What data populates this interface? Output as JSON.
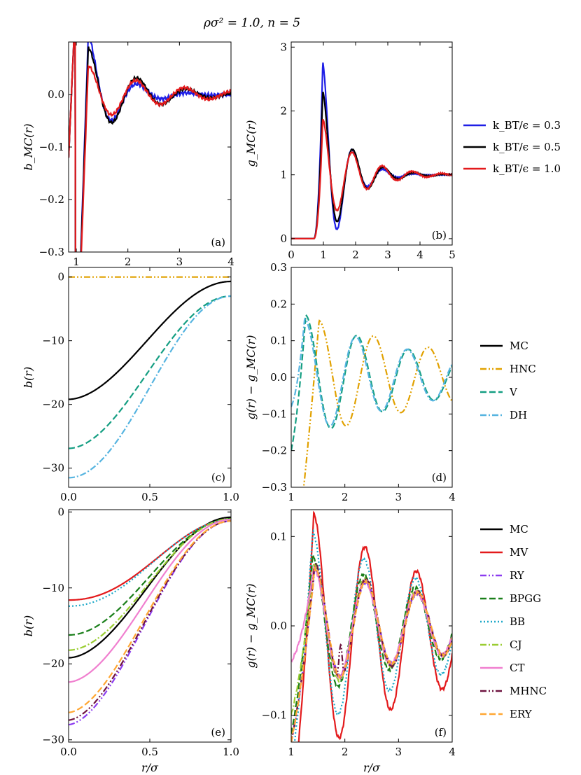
{
  "figure": {
    "suptitle": "ρσ² = 1.0, n = 5"
  },
  "colors": {
    "blue": "#1f1fe6",
    "black": "#000000",
    "red": "#e31a1c",
    "orange": "#e1a100",
    "teal": "#149e82",
    "skyblue": "#56b4e0",
    "purple": "#8c3cf0",
    "green": "#1a7f1a",
    "cyan": "#1ba8c8",
    "lime": "#9acd32",
    "pink": "#f07fcf",
    "maroon": "#6e1440",
    "lightorange": "#ffa733"
  },
  "legends": {
    "temperature": [
      {
        "label": "k_BT/ϵ = 0.3",
        "color": "blue",
        "dash": "solid"
      },
      {
        "label": "k_BT/ϵ = 0.5",
        "color": "black",
        "dash": "solid"
      },
      {
        "label": "k_BT/ϵ = 1.0",
        "color": "red",
        "dash": "solid"
      }
    ],
    "closures1": [
      {
        "label": "MC",
        "color": "black",
        "dash": "solid"
      },
      {
        "label": "HNC",
        "color": "orange",
        "dash": "dashdotdot"
      },
      {
        "label": "V",
        "color": "teal",
        "dash": "dashed"
      },
      {
        "label": "DH",
        "color": "skyblue",
        "dash": "dashdot"
      }
    ],
    "closures2": [
      {
        "label": "MC",
        "color": "black",
        "dash": "solid"
      },
      {
        "label": "MV",
        "color": "red",
        "dash": "solid"
      },
      {
        "label": "RY",
        "color": "purple",
        "dash": "dashdotdot"
      },
      {
        "label": "BPGG",
        "color": "green",
        "dash": "dashed"
      },
      {
        "label": "BB",
        "color": "cyan",
        "dash": "dotted"
      },
      {
        "label": "CJ",
        "color": "lime",
        "dash": "dashdot"
      },
      {
        "label": "CT",
        "color": "pink",
        "dash": "solid"
      },
      {
        "label": "MHNC",
        "color": "maroon",
        "dash": "dashdotdot"
      },
      {
        "label": "ERY",
        "color": "lightorange",
        "dash": "dashed"
      }
    ]
  },
  "chart_data": [
    {
      "id": "a",
      "type": "line",
      "panel_label": "(a)",
      "xlabel": "",
      "ylabel": "b_MC(r)",
      "xlim": [
        0.85,
        4.0
      ],
      "ylim": [
        -0.3,
        0.1
      ],
      "xticks": [
        1,
        2,
        3,
        4
      ],
      "xtick_labels": [
        "1",
        "2",
        "3",
        "4"
      ],
      "yticks": [
        -0.3,
        -0.2,
        -0.1,
        0.0
      ],
      "ytick_labels": [
        "−0.3",
        "−0.2",
        "−0.1",
        "0.0"
      ],
      "series": [
        {
          "name": "k_BT/ϵ = 0.3",
          "color": "blue",
          "dash": "solid",
          "model": {
            "type": "osc",
            "amp": 0.115,
            "period": 0.98,
            "phase": 1.232,
            "decay": 0.55,
            "rise": 1.0,
            "offset": 0,
            "noise": 0.004
          }
        },
        {
          "name": "k_BT/ϵ = 0.5",
          "color": "black",
          "dash": "solid",
          "model": {
            "type": "osc",
            "amp": 0.09,
            "period": 0.96,
            "phase": 1.232,
            "decay": 0.9,
            "rise": 1.0,
            "offset": 0,
            "noise": 0.003
          }
        },
        {
          "name": "k_BT/ϵ = 1.0",
          "color": "red",
          "dash": "solid",
          "model": {
            "type": "osc",
            "amp": 0.055,
            "period": 0.94,
            "phase": 1.232,
            "decay": 1.3,
            "rise": 1.05,
            "offset": 0,
            "noise": 0.003
          }
        }
      ]
    },
    {
      "id": "b",
      "type": "line",
      "panel_label": "(b)",
      "xlabel": "",
      "ylabel": "g_MC(r)",
      "xlim": [
        0,
        5
      ],
      "ylim": [
        -0.1,
        3.08
      ],
      "xticks": [
        0,
        1,
        2,
        3,
        4,
        5
      ],
      "xtick_labels": [
        "0",
        "1",
        "2",
        "3",
        "4",
        "5"
      ],
      "yticks": [
        0,
        1,
        2,
        3
      ],
      "ytick_labels": [
        "0",
        "1",
        "2",
        "3"
      ],
      "series": [
        {
          "name": "k_BT/ϵ = 0.3",
          "color": "blue",
          "dash": "solid",
          "model": {
            "type": "gr",
            "peak": 2.78,
            "period": 0.95,
            "decay": 0.62,
            "noise": 0.012
          }
        },
        {
          "name": "k_BT/ϵ = 0.5",
          "color": "black",
          "dash": "solid",
          "model": {
            "type": "gr",
            "peak": 2.32,
            "period": 0.95,
            "decay": 0.78,
            "noise": 0.01
          }
        },
        {
          "name": "k_BT/ϵ = 1.0",
          "color": "red",
          "dash": "solid",
          "model": {
            "type": "gr",
            "peak": 1.88,
            "period": 0.93,
            "decay": 1.0,
            "noise": 0.01
          }
        }
      ]
    },
    {
      "id": "c",
      "type": "line",
      "panel_label": "(c)",
      "xlabel": "",
      "ylabel": "b(r)",
      "xlim": [
        0,
        1
      ],
      "ylim": [
        -33,
        1.5
      ],
      "xticks": [
        0,
        0.5,
        1
      ],
      "xtick_labels": [
        "0.0",
        "0.5",
        "1.0"
      ],
      "yticks": [
        -30,
        -20,
        -10,
        0
      ],
      "ytick_labels": [
        "−30",
        "−20",
        "−10",
        "0"
      ],
      "series": [
        {
          "name": "MC",
          "color": "black",
          "dash": "solid",
          "model": {
            "type": "bowl",
            "b0": -19.2,
            "b1": -0.7,
            "steep": 2.6
          }
        },
        {
          "name": "HNC",
          "color": "orange",
          "dash": "dashdotdot",
          "model": {
            "type": "const",
            "value": 0
          }
        },
        {
          "name": "V",
          "color": "teal",
          "dash": "dashed",
          "model": {
            "type": "bowl",
            "b0": -26.9,
            "b1": -3.0,
            "steep": 2.5
          }
        },
        {
          "name": "DH",
          "color": "skyblue",
          "dash": "dashdot",
          "model": {
            "type": "bowl",
            "b0": -31.5,
            "b1": -3.0,
            "steep": 2.2
          }
        }
      ]
    },
    {
      "id": "d",
      "type": "line",
      "panel_label": "(d)",
      "xlabel": "",
      "ylabel": "g(r) − g_MC(r)",
      "xlim": [
        1,
        4
      ],
      "ylim": [
        -0.3,
        0.3
      ],
      "xticks": [
        1,
        2,
        3,
        4
      ],
      "xtick_labels": [
        "1",
        "2",
        "3",
        "4"
      ],
      "yticks": [
        -0.3,
        -0.2,
        -0.1,
        0.0,
        0.1,
        0.2,
        0.3
      ],
      "ytick_labels": [
        "−0.3",
        "−0.2",
        "−0.1",
        "0.0",
        "0.1",
        "0.2",
        "0.3"
      ],
      "series": [
        {
          "name": "HNC",
          "color": "orange",
          "dash": "dashdotdot",
          "model": {
            "type": "diff",
            "amp": 0.155,
            "period": 1.02,
            "peak": 1.52,
            "decay": 3.2,
            "start": -0.6,
            "rise": 0.3,
            "offset": 0.0
          }
        },
        {
          "name": "V",
          "color": "teal",
          "dash": "dashed",
          "model": {
            "type": "diff",
            "amp": 0.17,
            "period": 0.96,
            "peak": 1.27,
            "decay": 2.4,
            "start": -0.2,
            "rise": 0.2,
            "offset": 0.0
          }
        },
        {
          "name": "DH",
          "color": "skyblue",
          "dash": "dashdot",
          "model": {
            "type": "diff",
            "amp": 0.16,
            "period": 0.96,
            "peak": 1.25,
            "decay": 2.6,
            "start": -0.08,
            "rise": 0.2,
            "offset": 0.0
          }
        }
      ]
    },
    {
      "id": "e",
      "type": "line",
      "panel_label": "(e)",
      "xlabel": "r/σ",
      "ylabel": "b(r)",
      "xlim": [
        0,
        1
      ],
      "ylim": [
        -30.3,
        0.3
      ],
      "xticks": [
        0,
        0.5,
        1
      ],
      "xtick_labels": [
        "0.0",
        "0.5",
        "1.0"
      ],
      "yticks": [
        -30,
        -20,
        -10,
        0
      ],
      "ytick_labels": [
        "−30",
        "−20",
        "−10",
        "0"
      ],
      "series": [
        {
          "name": "MC",
          "color": "black",
          "dash": "solid",
          "model": {
            "type": "bowl",
            "b0": -19.2,
            "b1": -0.7,
            "steep": 2.6
          }
        },
        {
          "name": "MV",
          "color": "red",
          "dash": "solid",
          "model": {
            "type": "bowl",
            "b0": -11.6,
            "b1": -1.0,
            "steep": 1.6
          }
        },
        {
          "name": "RY",
          "color": "purple",
          "dash": "dashdotdot",
          "model": {
            "type": "bowl",
            "b0": -28.0,
            "b1": -1.2,
            "steep": 2.9
          }
        },
        {
          "name": "BPGG",
          "color": "green",
          "dash": "dashed",
          "model": {
            "type": "bowl",
            "b0": -16.2,
            "b1": -0.9,
            "steep": 2.3
          }
        },
        {
          "name": "BB",
          "color": "cyan",
          "dash": "dotted",
          "model": {
            "type": "bowl",
            "b0": -12.4,
            "b1": -1.0,
            "steep": 1.9
          }
        },
        {
          "name": "CJ",
          "color": "lime",
          "dash": "dashdot",
          "model": {
            "type": "bowl",
            "b0": -18.2,
            "b1": -0.9,
            "steep": 2.5
          }
        },
        {
          "name": "CT",
          "color": "pink",
          "dash": "solid",
          "model": {
            "type": "bowl",
            "b0": -22.4,
            "b1": -1.0,
            "steep": 2.8
          }
        },
        {
          "name": "MHNC",
          "color": "maroon",
          "dash": "dashdotdot",
          "model": {
            "type": "bowl",
            "b0": -27.4,
            "b1": -1.2,
            "steep": 2.9
          }
        },
        {
          "name": "ERY",
          "color": "lightorange",
          "dash": "dashed",
          "model": {
            "type": "bowl",
            "b0": -26.4,
            "b1": -1.2,
            "steep": 2.9
          }
        }
      ]
    },
    {
      "id": "f",
      "type": "line",
      "panel_label": "(f)",
      "xlabel": "r/σ",
      "ylabel": "g(r) − g_MC(r)",
      "xlim": [
        1,
        4
      ],
      "ylim": [
        -0.13,
        0.13
      ],
      "xticks": [
        1,
        2,
        3,
        4
      ],
      "xtick_labels": [
        "1",
        "2",
        "3",
        "4"
      ],
      "yticks": [
        -0.1,
        0.0,
        0.1
      ],
      "ytick_labels": [
        "−0.1",
        "0.0",
        "0.1"
      ],
      "series": [
        {
          "name": "MV",
          "color": "red",
          "dash": "solid",
          "model": {
            "type": "diff",
            "amp": 0.135,
            "period": 0.96,
            "peak": 1.42,
            "decay": 3.0,
            "start": -0.2,
            "rise": 0.15,
            "offset": -0.01,
            "noise": 0.002
          }
        },
        {
          "name": "BB",
          "color": "cyan",
          "dash": "dotted",
          "model": {
            "type": "diff",
            "amp": 0.11,
            "period": 0.96,
            "peak": 1.4,
            "decay": 3.0,
            "start": -0.15,
            "rise": 0.15,
            "offset": -0.005,
            "noise": 0.002
          }
        },
        {
          "name": "BPGG",
          "color": "green",
          "dash": "dashed",
          "model": {
            "type": "diff",
            "amp": 0.078,
            "period": 0.96,
            "peak": 1.4,
            "decay": 3.2,
            "start": -0.12,
            "rise": 0.15,
            "offset": 0.0,
            "noise": 0.002
          }
        },
        {
          "name": "CJ",
          "color": "lime",
          "dash": "dashdot",
          "model": {
            "type": "diff",
            "amp": 0.07,
            "period": 0.96,
            "peak": 1.42,
            "decay": 3.2,
            "start": -0.1,
            "rise": 0.15,
            "offset": 0.0,
            "noise": 0.002
          }
        },
        {
          "name": "CT",
          "color": "pink",
          "dash": "solid",
          "model": {
            "type": "diff",
            "amp": 0.065,
            "period": 0.96,
            "peak": 1.42,
            "decay": 3.4,
            "start": -0.04,
            "rise": 0.12,
            "offset": 0.0,
            "noise": 0.002
          }
        },
        {
          "name": "RY",
          "color": "purple",
          "dash": "dashdotdot",
          "model": {
            "type": "diff",
            "amp": 0.065,
            "period": 0.96,
            "peak": 1.44,
            "decay": 3.4,
            "start": -0.13,
            "rise": 0.15,
            "offset": 0.0,
            "noise": 0.002
          }
        },
        {
          "name": "MHNC",
          "color": "maroon",
          "dash": "dashdotdot",
          "model": {
            "type": "diff",
            "amp": 0.07,
            "period": 0.96,
            "peak": 1.44,
            "decay": 3.2,
            "start": -0.13,
            "rise": 0.15,
            "offset": 0.0,
            "noise": 0.002,
            "dip": 0.04
          }
        },
        {
          "name": "ERY",
          "color": "lightorange",
          "dash": "dashed",
          "model": {
            "type": "diff",
            "amp": 0.065,
            "period": 0.96,
            "peak": 1.44,
            "decay": 3.4,
            "start": -0.13,
            "rise": 0.15,
            "offset": 0.0,
            "noise": 0.002
          }
        }
      ]
    }
  ]
}
